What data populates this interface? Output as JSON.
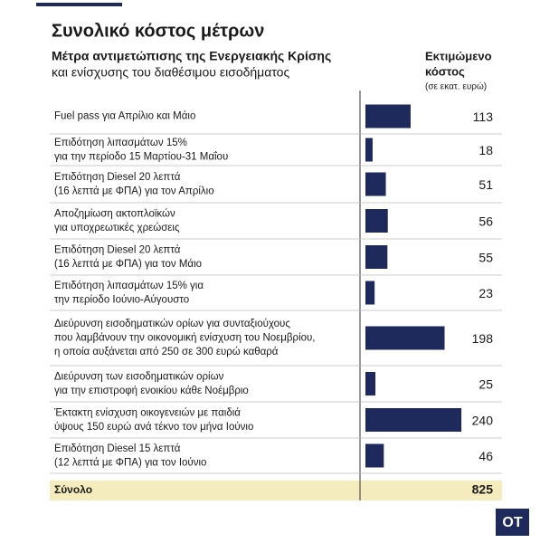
{
  "chart_data": {
    "type": "bar",
    "title": "Συνολικό κόστος μέτρων",
    "subtitle": [
      "Μέτρα αντιμετώπισης της Ενεργειακής Κρίσης",
      "και ενίσχυσης του διαθέσιμου εισοδήματος"
    ],
    "value_header": [
      "Εκτιμώμενο",
      "κόστος",
      "(σε εκατ. ευρώ)"
    ],
    "categories": [
      [
        "Fuel pass για Απρίλιο και Μάιο"
      ],
      [
        "Επιδότηση λιπασμάτων 15%",
        "για την περίοδο 15 Μαρτίου-31 Μαΐου"
      ],
      [
        "Επιδότηση Diesel 20 λεπτά",
        "(16 λεπτά με ΦΠΑ) για τον Απρίλιο"
      ],
      [
        "Αποζημίωση ακτοπλοϊκών",
        "για υποχρεωτικές χρεώσεις"
      ],
      [
        "Επιδότηση Diesel 20 λεπτά",
        "(16 λεπτά με ΦΠΑ) για τον Μάιο"
      ],
      [
        "Επιδότηση λιπασμάτων 15% για",
        "την περίοδο Ιούνιο-Αύγουστο"
      ],
      [
        "Διεύρυνση εισοδηματικών ορίων για συνταξιούχους",
        "που λαμβάνουν την οικονομική ενίσχυση του Νοεμβρίου,",
        "η οποία αυξάνεται από 250 σε 300 ευρώ καθαρά"
      ],
      [
        "Διεύρυνση των εισοδηματικών ορίων",
        "για την επιστροφή ενοικίου κάθε Νοέμβριο"
      ],
      [
        "Έκτακτη ενίσχυση οικογενειών με παιδιά",
        "ύψους 150 ευρώ ανά τέκνο τον μήνα Ιούνιο"
      ],
      [
        "Επιδότηση Diesel 15 λεπτά",
        "(12 λεπτά με ΦΠΑ) για τον Ιούνιο"
      ]
    ],
    "values": [
      113,
      18,
      51,
      56,
      55,
      23,
      198,
      25,
      240,
      46
    ],
    "color": "#1f2a5c",
    "total": {
      "label": "Σύνολο",
      "value": 825
    },
    "logo": "ΟΤ"
  }
}
